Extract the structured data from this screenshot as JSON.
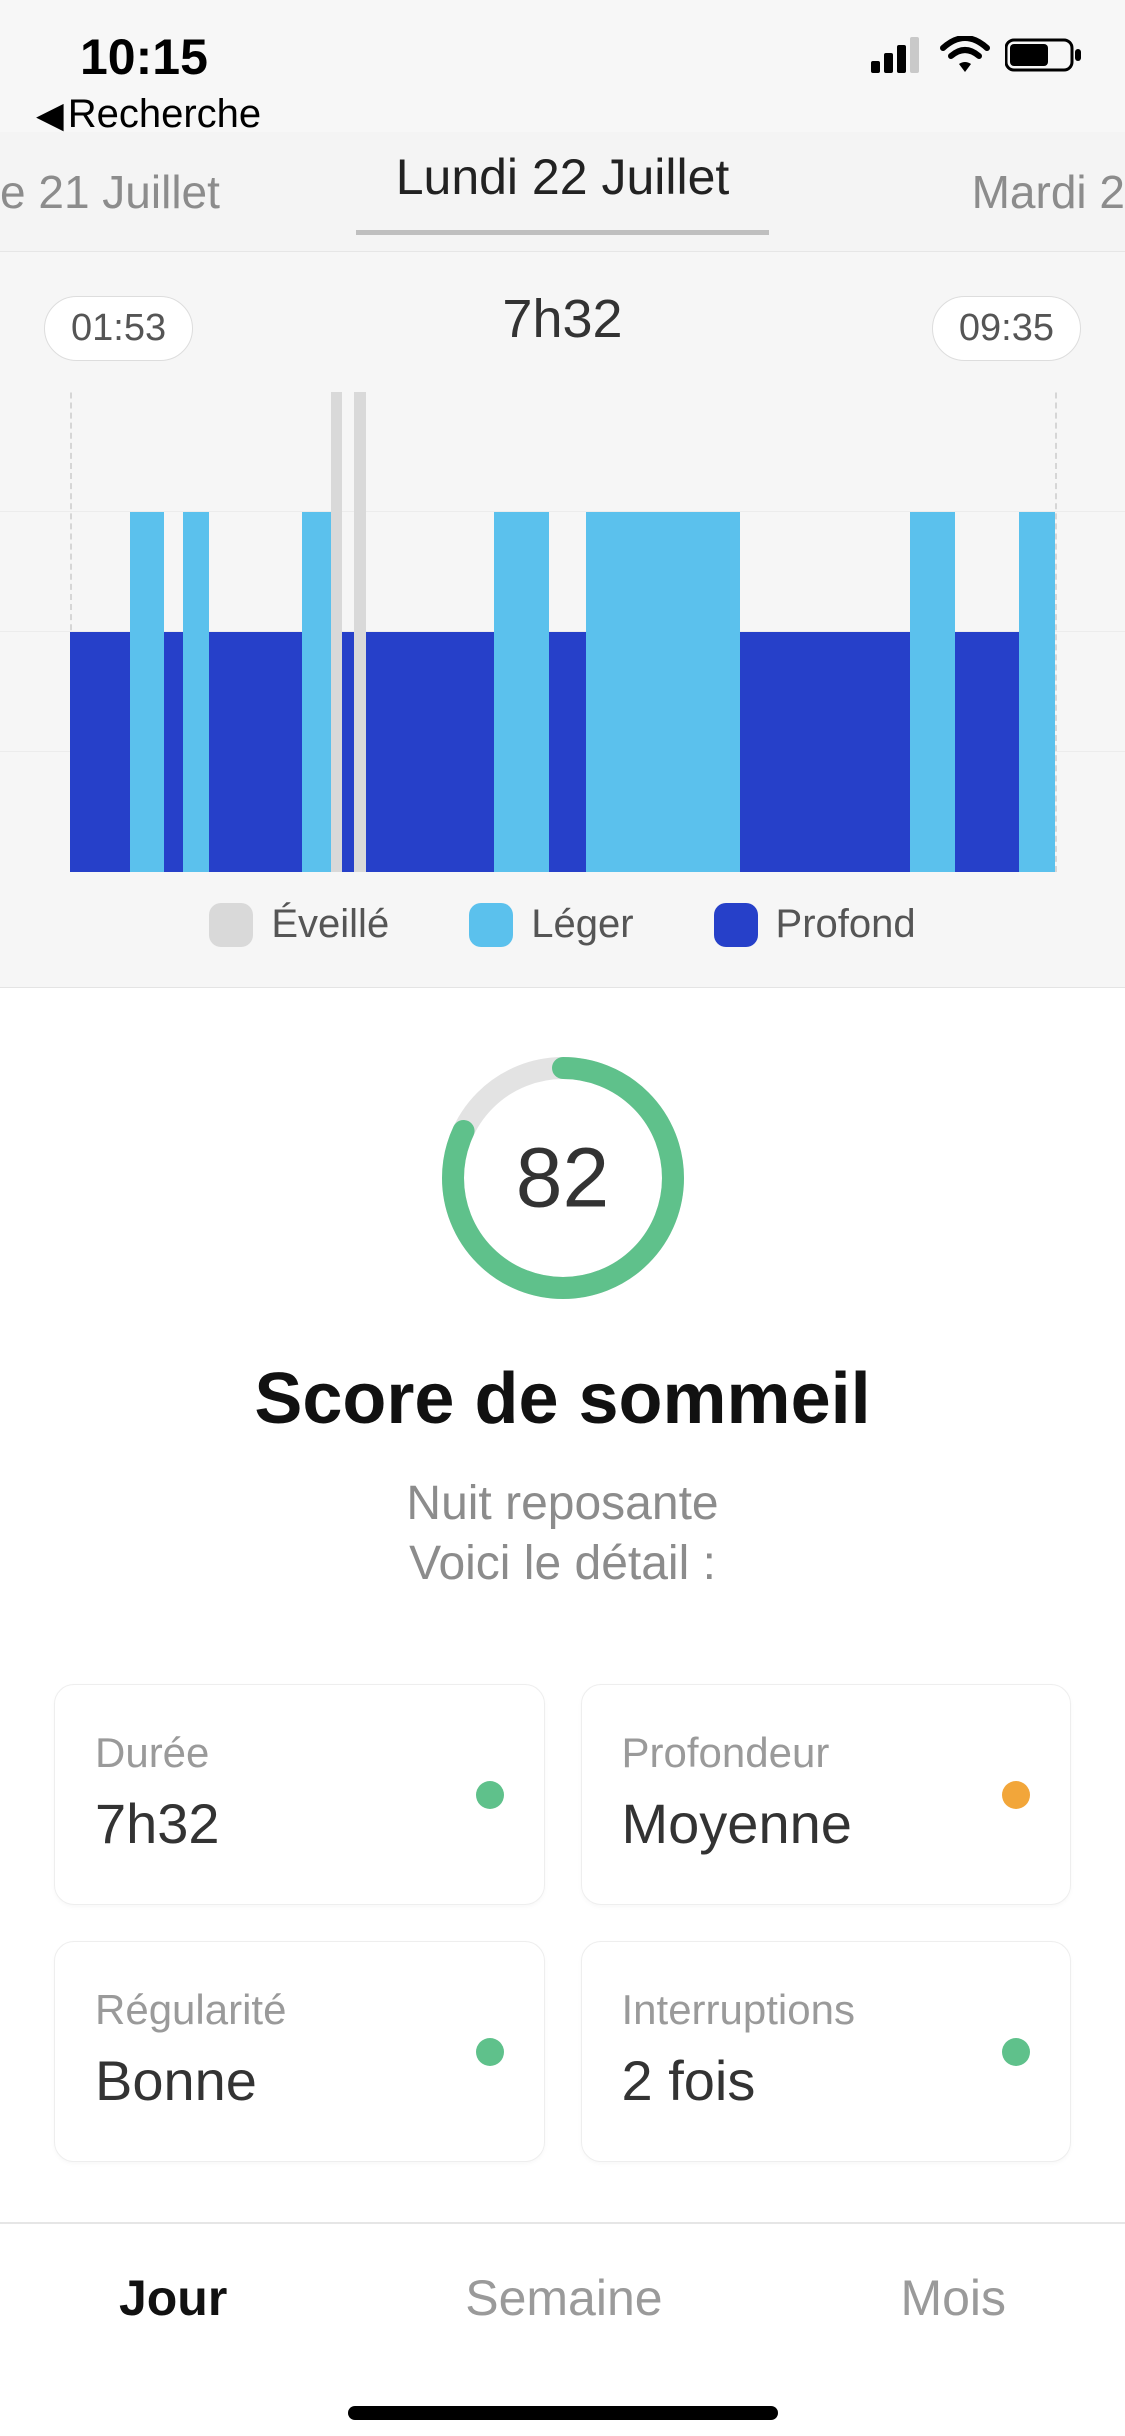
{
  "status": {
    "time": "10:15",
    "back_label": "Recherche",
    "signal_bars": 4,
    "wifi": true,
    "battery_pct": 60
  },
  "dates": {
    "prev": "e 21 Juillet",
    "current": "Lundi 22 Juillet",
    "next": "Mardi 2"
  },
  "sleep_chart": {
    "start_label": "01:53",
    "end_label": "09:35",
    "duration_label": "7h32",
    "start_hour": 1.883,
    "end_hour": 9.583,
    "levels": {
      "awake": 4,
      "light": 3,
      "deep": 2
    },
    "max_level": 4,
    "grid_rows": 4,
    "colors": {
      "awake": "#d9d9d9",
      "light": "#5bc1ed",
      "deep": "#2640c9",
      "grid": "#ececec",
      "guide": "#d6d6d6",
      "background": "#f6f6f6"
    },
    "segments": [
      {
        "phase": "deep",
        "from": 1.883,
        "to": 2.35
      },
      {
        "phase": "light",
        "from": 2.35,
        "to": 2.62
      },
      {
        "phase": "deep",
        "from": 2.62,
        "to": 2.77
      },
      {
        "phase": "light",
        "from": 2.77,
        "to": 2.97
      },
      {
        "phase": "deep",
        "from": 2.97,
        "to": 3.7
      },
      {
        "phase": "light",
        "from": 3.7,
        "to": 3.92
      },
      {
        "phase": "awake",
        "from": 3.92,
        "to": 4.01
      },
      {
        "phase": "deep",
        "from": 4.01,
        "to": 4.1
      },
      {
        "phase": "awake",
        "from": 4.1,
        "to": 4.2
      },
      {
        "phase": "deep",
        "from": 4.2,
        "to": 5.2
      },
      {
        "phase": "light",
        "from": 5.2,
        "to": 5.63
      },
      {
        "phase": "deep",
        "from": 5.63,
        "to": 5.92
      },
      {
        "phase": "light",
        "from": 5.92,
        "to": 7.12
      },
      {
        "phase": "deep",
        "from": 7.12,
        "to": 8.45
      },
      {
        "phase": "light",
        "from": 8.45,
        "to": 8.8
      },
      {
        "phase": "deep",
        "from": 8.8,
        "to": 9.3
      },
      {
        "phase": "light",
        "from": 9.3,
        "to": 9.583
      }
    ],
    "legend": [
      {
        "key": "awake",
        "label": "Éveillé",
        "color": "#d9d9d9"
      },
      {
        "key": "light",
        "label": "Léger",
        "color": "#5bc1ed"
      },
      {
        "key": "deep",
        "label": "Profond",
        "color": "#2640c9"
      }
    ]
  },
  "score": {
    "value": 82,
    "max": 100,
    "title": "Score de sommeil",
    "subtitle_line1": "Nuit reposante",
    "subtitle_line2": "Voici le détail :",
    "ring_color": "#5fc18b",
    "ring_bg": "#e3e3e3"
  },
  "cards": [
    {
      "label": "Durée",
      "value": "7h32",
      "dot_color": "#5fc18b"
    },
    {
      "label": "Profondeur",
      "value": "Moyenne",
      "dot_color": "#f2a63a"
    },
    {
      "label": "Régularité",
      "value": "Bonne",
      "dot_color": "#5fc18b"
    },
    {
      "label": "Interruptions",
      "value": "2 fois",
      "dot_color": "#5fc18b"
    }
  ],
  "tabs": {
    "items": [
      "Jour",
      "Semaine",
      "Mois"
    ],
    "active_index": 0
  }
}
